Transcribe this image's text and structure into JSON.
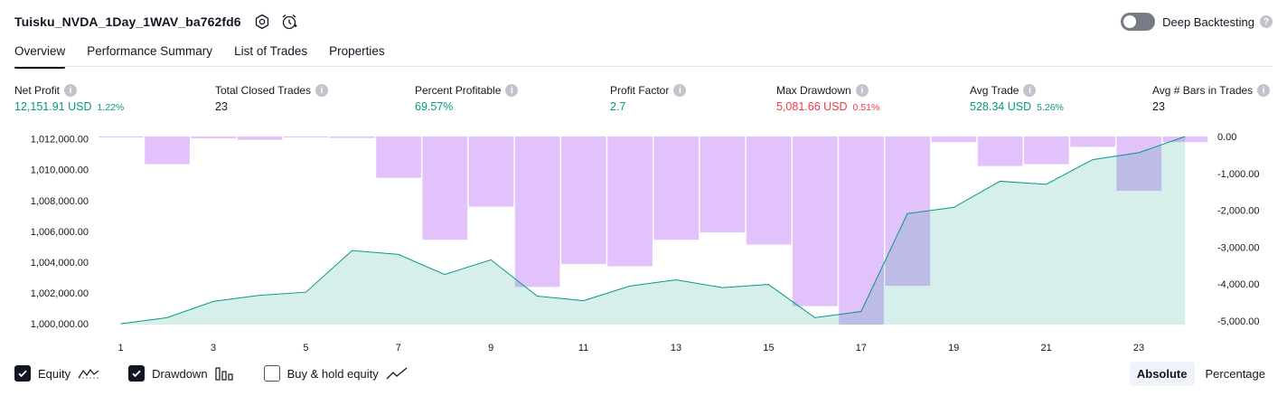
{
  "header": {
    "title": "Tuisku_NVDA_1Day_1WAV_ba762fd6",
    "icons": [
      "settings-icon",
      "alarm-icon"
    ]
  },
  "deep_backtesting": {
    "label": "Deep Backtesting",
    "enabled": false,
    "help": "?"
  },
  "tabs": [
    {
      "label": "Overview",
      "active": true
    },
    {
      "label": "Performance Summary",
      "active": false
    },
    {
      "label": "List of Trades",
      "active": false
    },
    {
      "label": "Properties",
      "active": false
    }
  ],
  "metrics": [
    {
      "label": "Net Profit",
      "value": "12,151.91 USD",
      "pct": "1.22%",
      "color": "green"
    },
    {
      "label": "Total Closed Trades",
      "value": "23",
      "pct": "",
      "color": "dark"
    },
    {
      "label": "Percent Profitable",
      "value": "69.57%",
      "pct": "",
      "color": "green"
    },
    {
      "label": "Profit Factor",
      "value": "2.7",
      "pct": "",
      "color": "green"
    },
    {
      "label": "Max Drawdown",
      "value": "5,081.66 USD",
      "pct": "0.51%",
      "color": "red"
    },
    {
      "label": "Avg Trade",
      "value": "528.34 USD",
      "pct": "5.26%",
      "color": "green"
    },
    {
      "label": "Avg # Bars in Trades",
      "value": "23",
      "pct": "",
      "color": "dark"
    }
  ],
  "info_glyph": "i",
  "chart_data": {
    "type": "bar",
    "x": [
      1,
      2,
      3,
      4,
      5,
      6,
      7,
      8,
      9,
      10,
      11,
      12,
      13,
      14,
      15,
      16,
      17,
      18,
      19,
      20,
      21,
      22,
      23,
      24
    ],
    "x_tick_labels": [
      "1",
      "3",
      "5",
      "7",
      "9",
      "11",
      "13",
      "15",
      "17",
      "19",
      "21",
      "23"
    ],
    "left_axis": {
      "ticks": [
        "1,000,000.00",
        "1,002,000.00",
        "1,004,000.00",
        "1,006,000.00",
        "1,008,000.00",
        "1,010,000.00",
        "1,012,000.00"
      ],
      "ylim": [
        999950,
        1012150
      ]
    },
    "right_axis": {
      "ticks": [
        "0.00",
        "-1,000.00",
        "-2,000.00",
        "-3,000.00",
        "-4,000.00",
        "-5,000.00"
      ],
      "ylim": [
        -5100,
        0
      ]
    },
    "series": [
      {
        "name": "Equity",
        "type": "area",
        "axis": "left",
        "color": "#089981",
        "values": [
          1000000,
          1000400,
          1001450,
          1001850,
          1002050,
          1004750,
          1004500,
          1003200,
          1004150,
          1001800,
          1001500,
          1002450,
          1002850,
          1002350,
          1002550,
          1000400,
          1000800,
          1007150,
          1007550,
          1009250,
          1009050,
          1010650,
          1011100,
          1012150
        ]
      },
      {
        "name": "Drawdown",
        "type": "bar",
        "axis": "right",
        "color": "#ce93f8",
        "values": [
          -20,
          -750,
          -50,
          -90,
          -20,
          -40,
          -1120,
          -2800,
          -1900,
          -4080,
          -3460,
          -3520,
          -2800,
          -2600,
          -2930,
          -4600,
          -5100,
          -4050,
          -150,
          -800,
          -750,
          -280,
          -1470,
          -150
        ]
      }
    ]
  },
  "legend": [
    {
      "label": "Equity",
      "checked": true,
      "icon": "equity-line-icon"
    },
    {
      "label": "Drawdown",
      "checked": true,
      "icon": "drawdown-bars-icon"
    },
    {
      "label": "Buy & hold equity",
      "checked": false,
      "icon": "buy-hold-line-icon"
    }
  ],
  "mode": {
    "absolute": "Absolute",
    "percentage": "Percentage",
    "selected": "absolute"
  }
}
